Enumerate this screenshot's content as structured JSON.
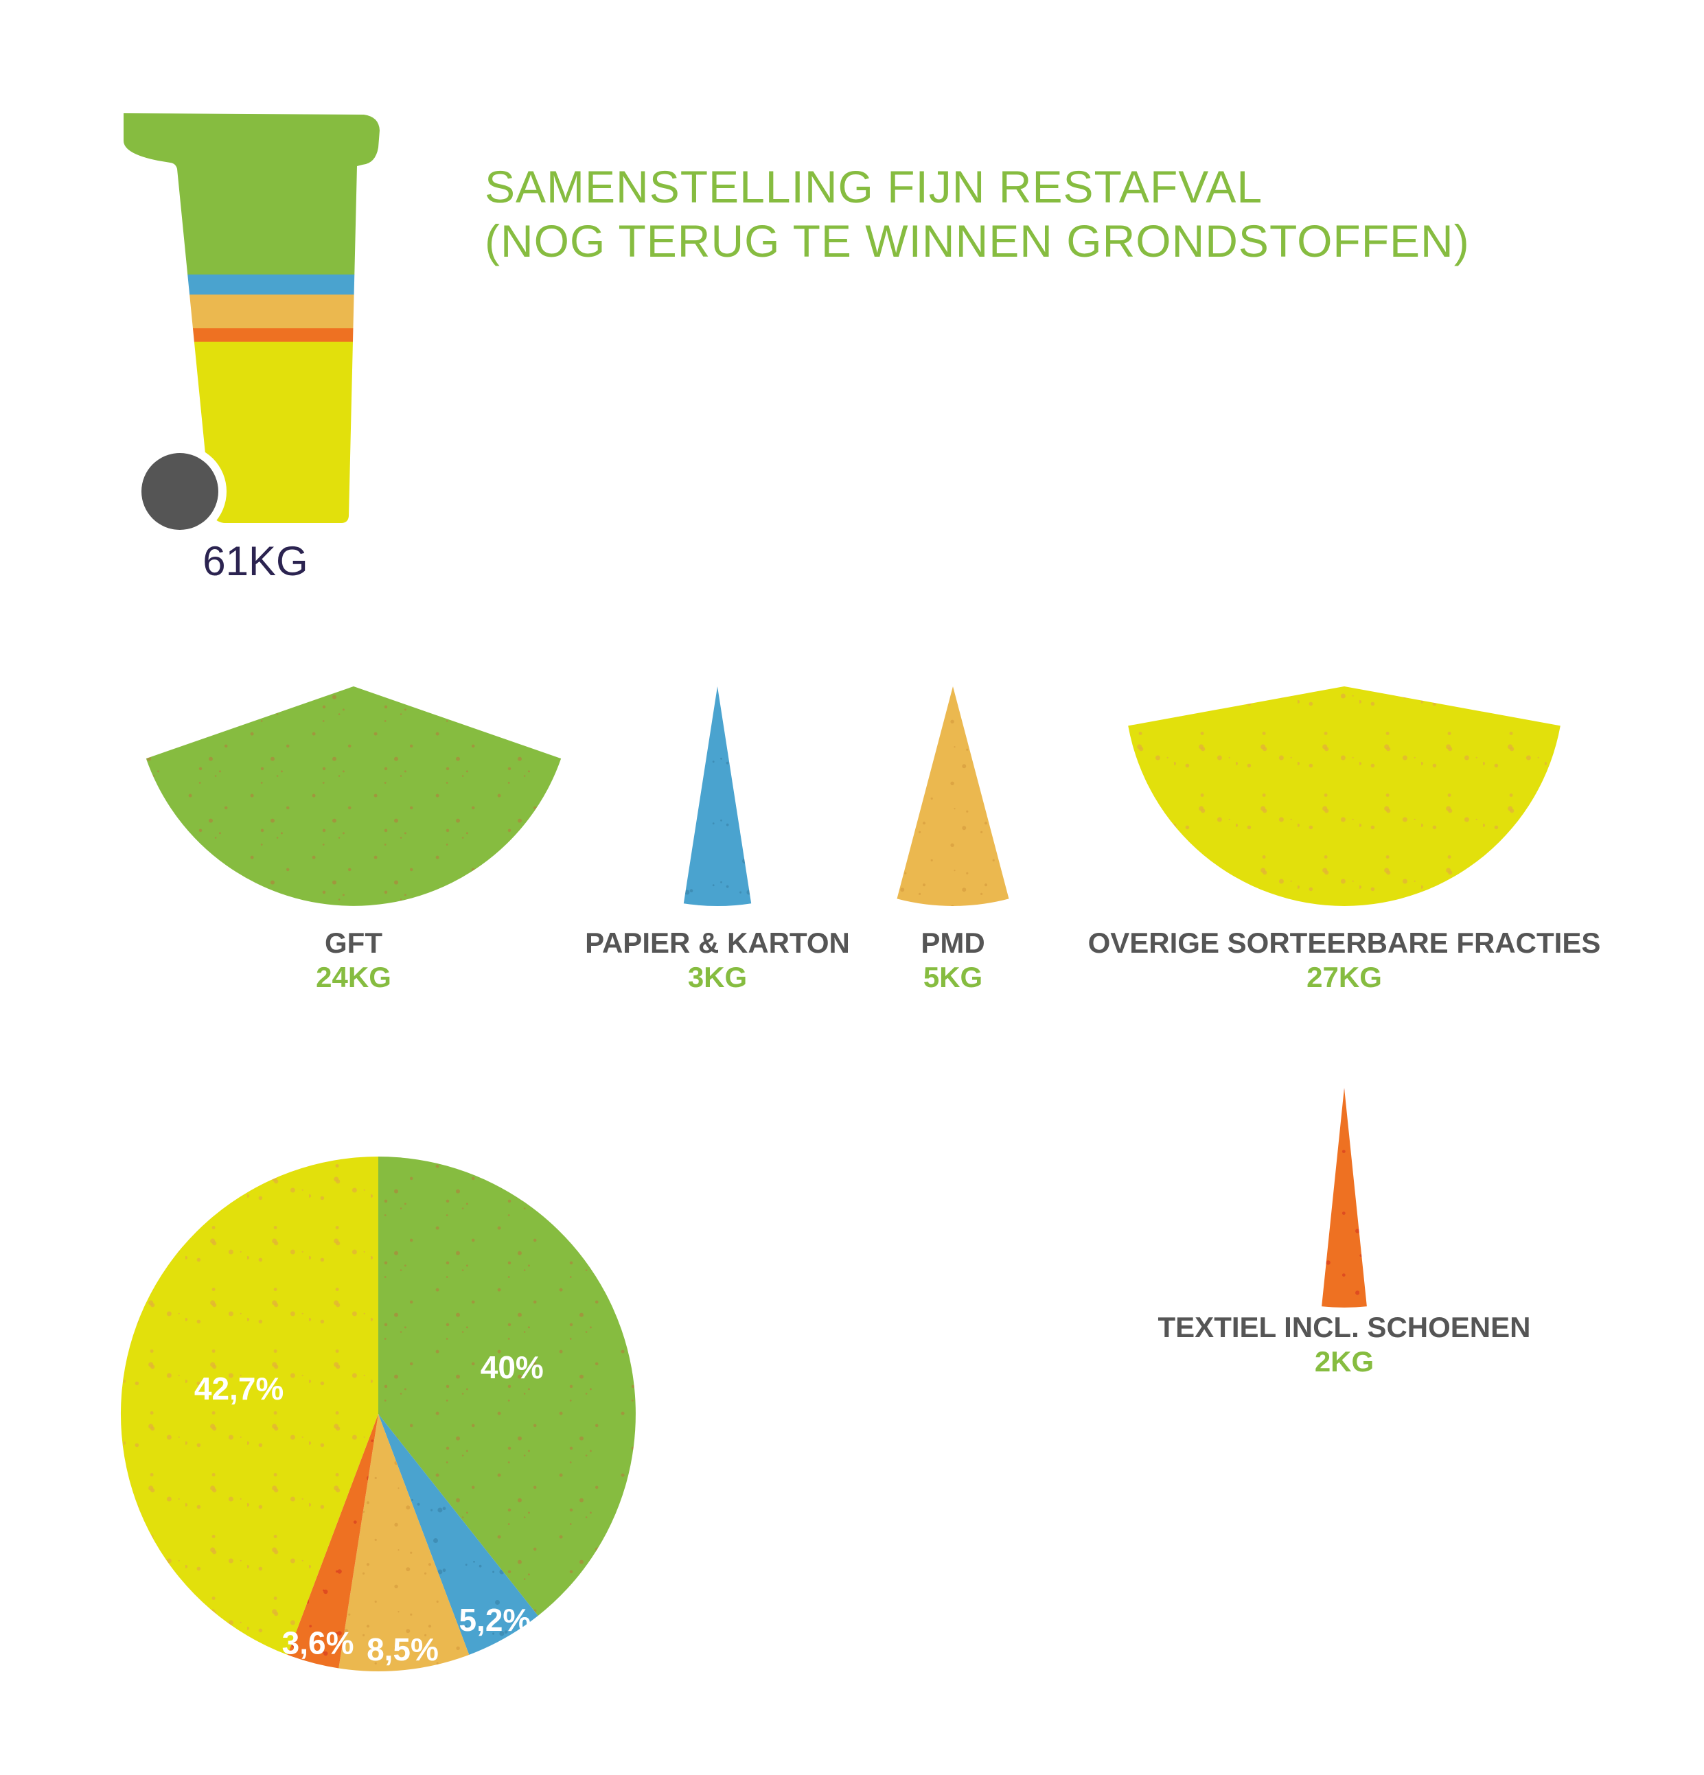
{
  "title": {
    "line1": "SAMENSTELLING FIJN RESTAFVAL",
    "line2": "(NOG TERUG TE WINNEN GRONDSTOFFEN)"
  },
  "total": {
    "label": "61KG",
    "value": 61,
    "unit": "KG"
  },
  "colors": {
    "title": "#86bc40",
    "label": "#555555",
    "value": "#86bc40",
    "total": "#2b2350",
    "wheel": "#555555",
    "pct_text": "#ffffff"
  },
  "chart_data": {
    "type": "pie",
    "title": "SAMENSTELLING FIJN RESTAFVAL (NOG TERUG TE WINNEN GRONDSTOFFEN)",
    "series": [
      {
        "name": "GFT",
        "value": 24,
        "value_label": "24KG",
        "percent": 40,
        "percent_label": "40%",
        "color": "#86bc40",
        "speckle": "#a88b3c"
      },
      {
        "name": "PAPIER & KARTON",
        "value": 3,
        "value_label": "3KG",
        "percent": 5.2,
        "percent_label": "5,2%",
        "color": "#4aa3cf",
        "speckle": "#3b86ad"
      },
      {
        "name": "PMD",
        "value": 5,
        "value_label": "5KG",
        "percent": 8.5,
        "percent_label": "8,5%",
        "color": "#ebb84f",
        "speckle": "#d89e3e"
      },
      {
        "name": "TEXTIEL INCL. SCHOENEN",
        "value": 2,
        "value_label": "2KG",
        "percent": 3.6,
        "percent_label": "3,6%",
        "color": "#ee7122",
        "speckle": "#d9401f"
      },
      {
        "name": "OVERIGE SORTEERBARE FRACTIES",
        "value": 27,
        "value_label": "27KG",
        "percent": 42.7,
        "percent_label": "42,7%",
        "color": "#e2e00c",
        "speckle": "#e3b236"
      }
    ]
  }
}
